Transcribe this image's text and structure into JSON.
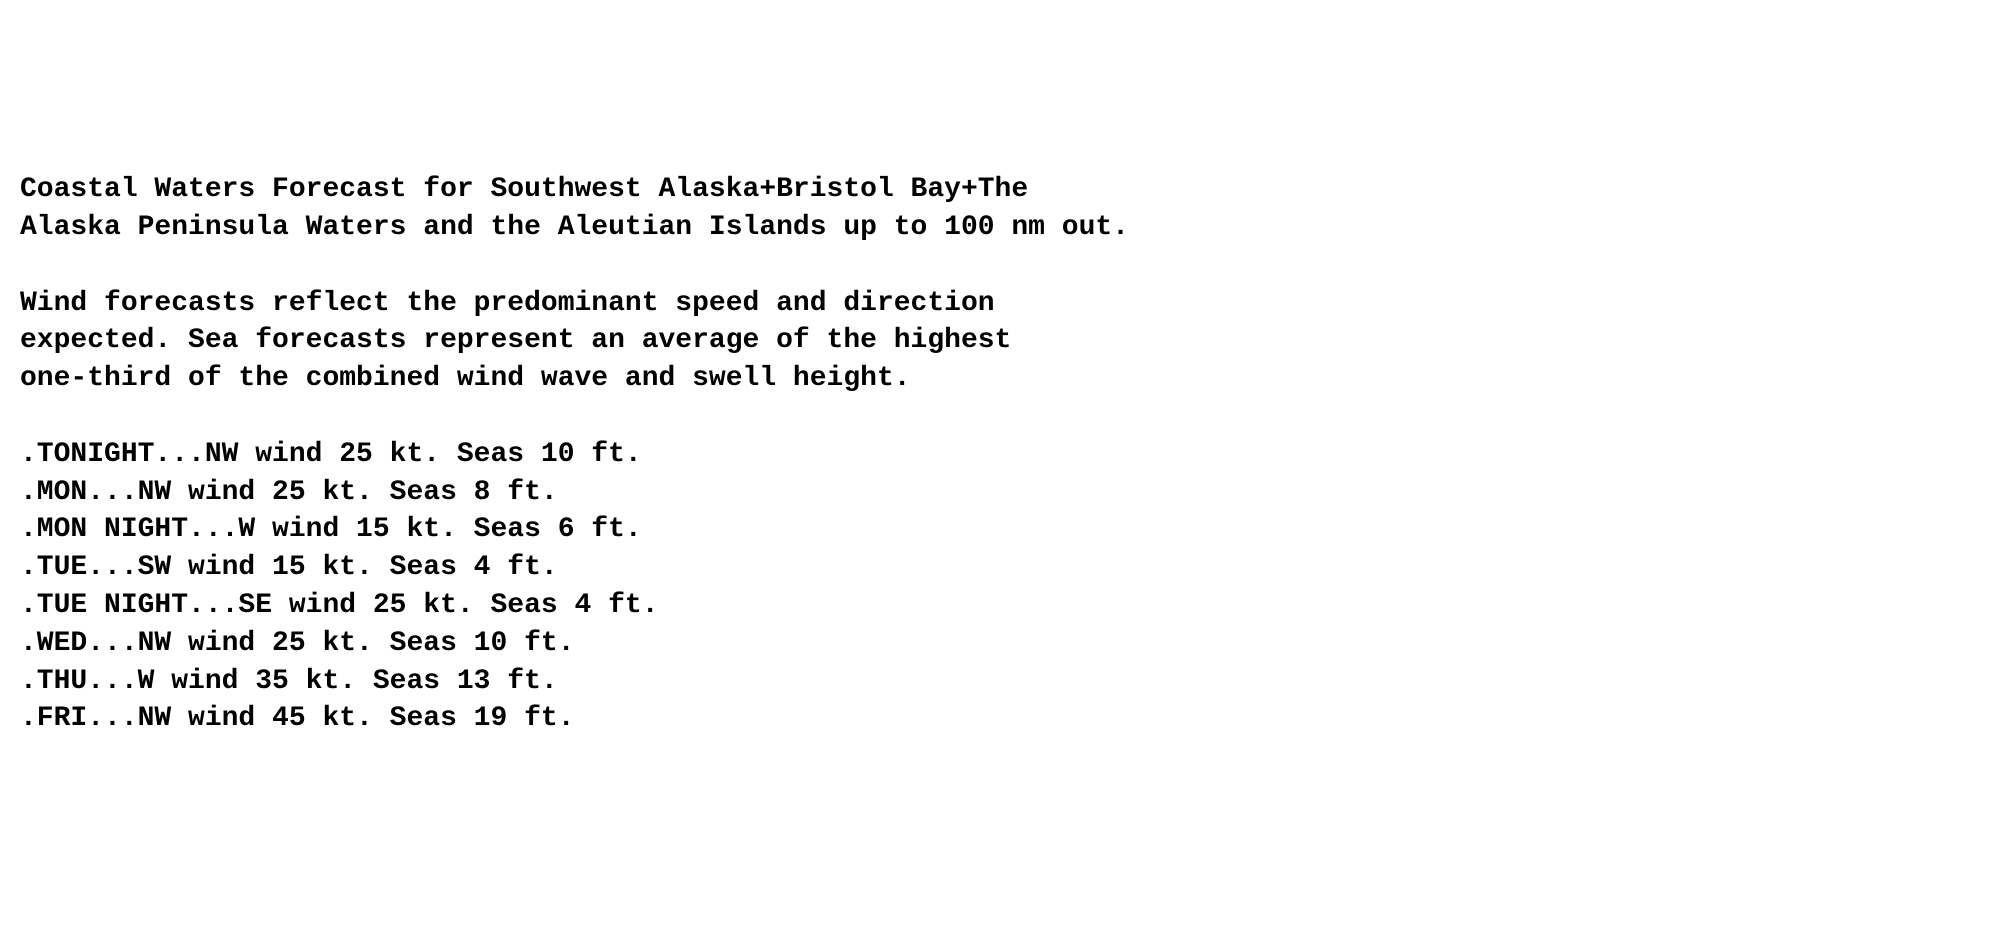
{
  "header": {
    "line1": "Coastal Waters Forecast for Southwest Alaska+Bristol Bay+The",
    "line2": "Alaska Peninsula Waters and the Aleutian Islands up to 100 nm out."
  },
  "description": {
    "line1": "Wind forecasts reflect the predominant speed and direction",
    "line2": "expected. Sea forecasts represent an average of the highest",
    "line3": "one-third of the combined wind wave and swell height."
  },
  "forecast": {
    "periods": [
      {
        "label": "TONIGHT",
        "wind_dir": "NW",
        "wind_speed_kt": 25,
        "seas_ft": 10,
        "text": ".TONIGHT...NW wind 25 kt. Seas 10 ft."
      },
      {
        "label": "MON",
        "wind_dir": "NW",
        "wind_speed_kt": 25,
        "seas_ft": 8,
        "text": ".MON...NW wind 25 kt. Seas 8 ft."
      },
      {
        "label": "MON NIGHT",
        "wind_dir": "W",
        "wind_speed_kt": 15,
        "seas_ft": 6,
        "text": ".MON NIGHT...W wind 15 kt. Seas 6 ft."
      },
      {
        "label": "TUE",
        "wind_dir": "SW",
        "wind_speed_kt": 15,
        "seas_ft": 4,
        "text": ".TUE...SW wind 15 kt. Seas 4 ft."
      },
      {
        "label": "TUE NIGHT",
        "wind_dir": "SE",
        "wind_speed_kt": 25,
        "seas_ft": 4,
        "text": ".TUE NIGHT...SE wind 25 kt. Seas 4 ft."
      },
      {
        "label": "WED",
        "wind_dir": "NW",
        "wind_speed_kt": 25,
        "seas_ft": 10,
        "text": ".WED...NW wind 25 kt. Seas 10 ft."
      },
      {
        "label": "THU",
        "wind_dir": "W",
        "wind_speed_kt": 35,
        "seas_ft": 13,
        "text": ".THU...W wind 35 kt. Seas 13 ft."
      },
      {
        "label": "FRI",
        "wind_dir": "NW",
        "wind_speed_kt": 45,
        "seas_ft": 19,
        "text": ".FRI...NW wind 45 kt. Seas 19 ft."
      }
    ]
  },
  "style": {
    "font_family": "Courier New, monospace",
    "font_size_pt": 21,
    "font_weight": "bold",
    "text_color": "#000000",
    "background_color": "#ffffff",
    "line_height": 1.35
  }
}
